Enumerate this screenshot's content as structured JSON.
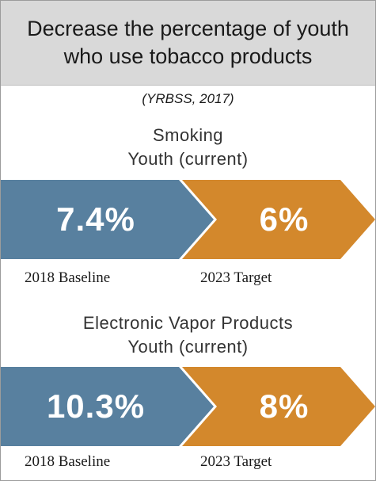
{
  "header": {
    "title": "Decrease the percentage of youth who use tobacco products"
  },
  "source": "(YRBSS, 2017)",
  "colors": {
    "baseline": "#58809f",
    "target": "#d3882c",
    "header_bg": "#d9d9d9"
  },
  "sections": [
    {
      "title_line1": "Smoking",
      "title_line2": "Youth (current)",
      "baseline_value": "7.4%",
      "target_value": "6%",
      "baseline_label": "2018 Baseline",
      "target_label": "2023 Target"
    },
    {
      "title_line1": "Electronic Vapor Products",
      "title_line2": "Youth (current)",
      "baseline_value": "10.3%",
      "target_value": "8%",
      "baseline_label": "2018 Baseline",
      "target_label": "2023 Target"
    }
  ]
}
